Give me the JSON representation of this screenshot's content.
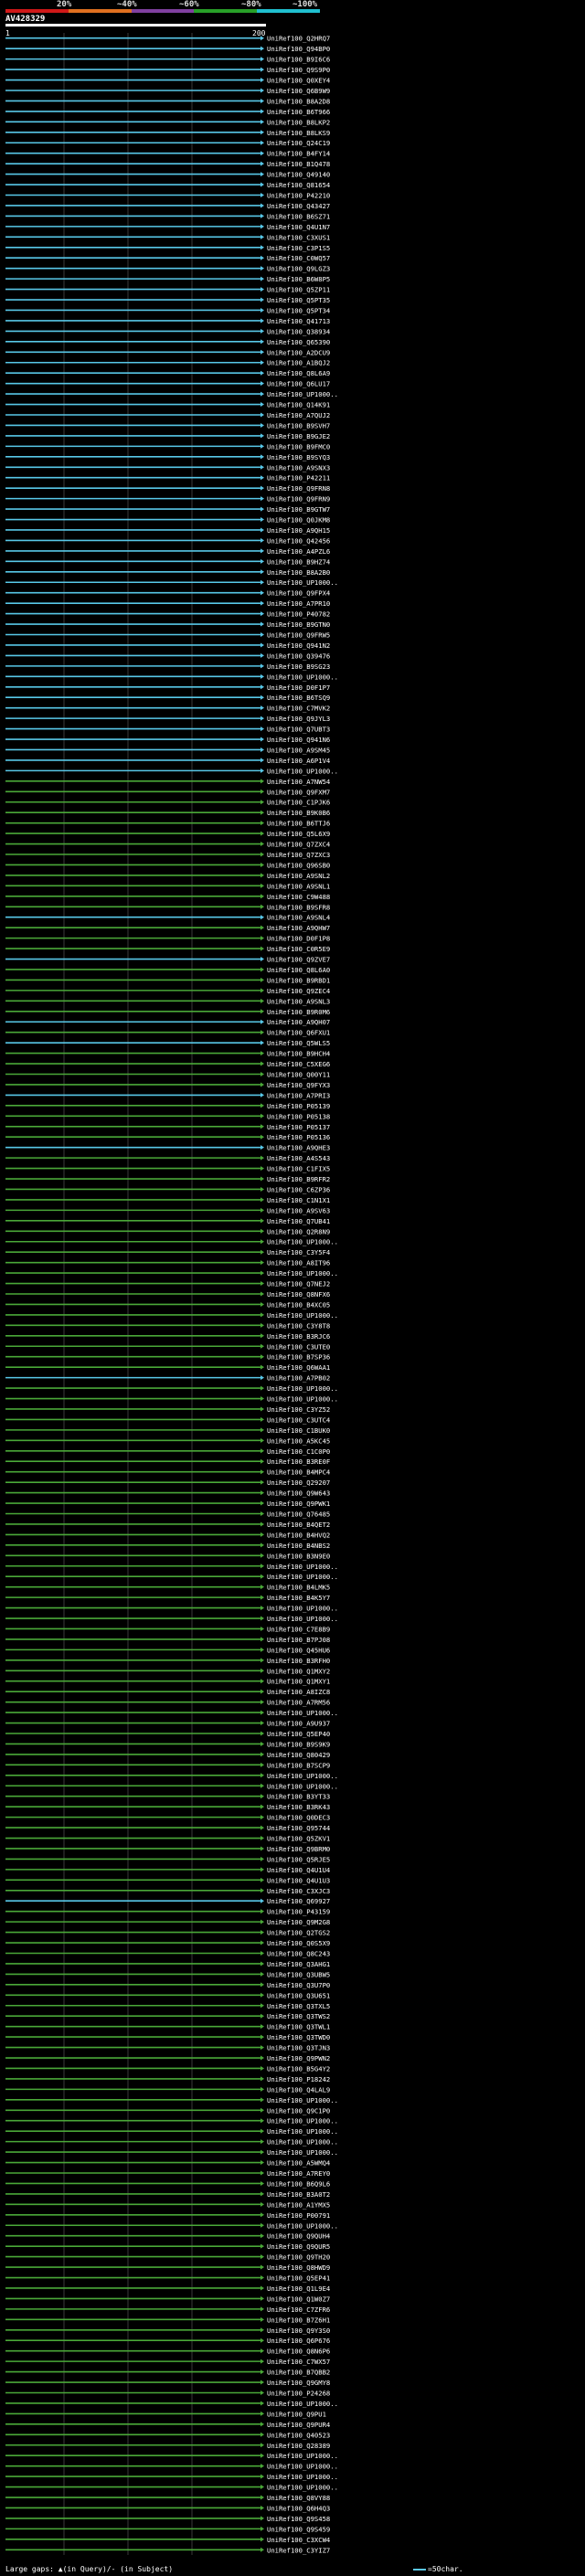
{
  "header": {
    "query_id": "AV428329",
    "scale_labels": [
      "20%",
      "~40%",
      "~60%",
      "~80%",
      "~100%"
    ],
    "scale_colors": [
      "#d01818",
      "#e07020",
      "#8040a0",
      "#28a028",
      "#20c0d0"
    ],
    "query_start_label": "1",
    "query_end_label": "200"
  },
  "colors": {
    "cyan": "#58c8e8",
    "green": "#4aa838",
    "gap": "#111111",
    "guide": "#3a3a3a"
  },
  "legend": {
    "left": "Large gaps: ▲(in Query)/- (in Subject)",
    "right": "=50char."
  },
  "hits": [
    {
      "id": "UniRef100_Q2HRQ7",
      "color": "cyan"
    },
    {
      "id": "UniRef100_Q94BP0",
      "color": "cyan"
    },
    {
      "id": "UniRef100_B9I6C6",
      "color": "cyan"
    },
    {
      "id": "UniRef100_Q9S9P0",
      "color": "cyan"
    },
    {
      "id": "UniRef100_Q0XEY4",
      "color": "cyan"
    },
    {
      "id": "UniRef100_Q6B9W9",
      "color": "cyan"
    },
    {
      "id": "UniRef100_B8A2D8",
      "color": "cyan"
    },
    {
      "id": "UniRef100_B6T966",
      "color": "cyan"
    },
    {
      "id": "UniRef100_B8LKP2",
      "color": "cyan"
    },
    {
      "id": "UniRef100_B8LKS9",
      "color": "cyan"
    },
    {
      "id": "UniRef100_Q24C19",
      "color": "cyan"
    },
    {
      "id": "UniRef100_B4FY14",
      "color": "cyan"
    },
    {
      "id": "UniRef100_B1Q478",
      "color": "cyan"
    },
    {
      "id": "UniRef100_Q49140",
      "color": "cyan"
    },
    {
      "id": "UniRef100_Q81654",
      "color": "cyan"
    },
    {
      "id": "UniRef100_P42210",
      "color": "cyan"
    },
    {
      "id": "UniRef100_Q43427",
      "color": "cyan"
    },
    {
      "id": "UniRef100_B6SZ71",
      "color": "cyan"
    },
    {
      "id": "UniRef100_Q4U1N7",
      "color": "cyan"
    },
    {
      "id": "UniRef100_C3XUS1",
      "color": "cyan"
    },
    {
      "id": "UniRef100_C3P1S5",
      "color": "cyan"
    },
    {
      "id": "UniRef100_C0WQ57",
      "color": "cyan"
    },
    {
      "id": "UniRef100_Q9LGZ3",
      "color": "cyan"
    },
    {
      "id": "UniRef100_B6W8P5",
      "color": "cyan"
    },
    {
      "id": "UniRef100_Q5ZP11",
      "color": "cyan"
    },
    {
      "id": "UniRef100_Q5PT35",
      "color": "cyan"
    },
    {
      "id": "UniRef100_Q5PT34",
      "color": "cyan"
    },
    {
      "id": "UniRef100_Q41713",
      "color": "cyan"
    },
    {
      "id": "UniRef100_Q38934",
      "color": "cyan"
    },
    {
      "id": "UniRef100_Q65390",
      "color": "cyan"
    },
    {
      "id": "UniRef100_A2DCU9",
      "color": "cyan"
    },
    {
      "id": "UniRef100_A1BQJ2",
      "color": "cyan"
    },
    {
      "id": "UniRef100_Q8L6A9",
      "color": "cyan"
    },
    {
      "id": "UniRef100_Q6LU17",
      "color": "cyan"
    },
    {
      "id": "UniRef100_UP1000..",
      "color": "cyan"
    },
    {
      "id": "UniRef100_Q14K91",
      "color": "cyan"
    },
    {
      "id": "UniRef100_A7QUJ2",
      "color": "cyan"
    },
    {
      "id": "UniRef100_B9SVH7",
      "color": "cyan"
    },
    {
      "id": "UniRef100_B9GJE2",
      "color": "cyan"
    },
    {
      "id": "UniRef100_B9FMC0",
      "color": "cyan"
    },
    {
      "id": "UniRef100_B9SYQ3",
      "color": "cyan"
    },
    {
      "id": "UniRef100_A9SNX3",
      "color": "cyan"
    },
    {
      "id": "UniRef100_P42211",
      "color": "cyan"
    },
    {
      "id": "UniRef100_Q9FRN8",
      "color": "cyan"
    },
    {
      "id": "UniRef100_Q9FRN9",
      "color": "cyan"
    },
    {
      "id": "UniRef100_B9GTW7",
      "color": "cyan"
    },
    {
      "id": "UniRef100_Q0JKM8",
      "color": "cyan"
    },
    {
      "id": "UniRef100_A9QH15",
      "color": "cyan"
    },
    {
      "id": "UniRef100_Q42456",
      "color": "cyan"
    },
    {
      "id": "UniRef100_A4PZL6",
      "color": "cyan"
    },
    {
      "id": "UniRef100_B9HZ74",
      "color": "cyan"
    },
    {
      "id": "UniRef100_B8A2B0",
      "color": "cyan"
    },
    {
      "id": "UniRef100_UP1000..",
      "color": "cyan"
    },
    {
      "id": "UniRef100_Q9FPX4",
      "color": "cyan"
    },
    {
      "id": "UniRef100_A7PR10",
      "color": "cyan"
    },
    {
      "id": "UniRef100_P40782",
      "color": "cyan"
    },
    {
      "id": "UniRef100_B9GTN0",
      "color": "cyan"
    },
    {
      "id": "UniRef100_Q9FRW5",
      "color": "cyan"
    },
    {
      "id": "UniRef100_Q941N2",
      "color": "cyan"
    },
    {
      "id": "UniRef100_Q39476",
      "color": "cyan"
    },
    {
      "id": "UniRef100_B9SG23",
      "color": "cyan"
    },
    {
      "id": "UniRef100_UP1000..",
      "color": "cyan"
    },
    {
      "id": "UniRef100_D0F1P7",
      "color": "cyan"
    },
    {
      "id": "UniRef100_B6TSQ9",
      "color": "cyan"
    },
    {
      "id": "UniRef100_C7MVK2",
      "color": "cyan"
    },
    {
      "id": "UniRef100_Q9JYL3",
      "color": "cyan"
    },
    {
      "id": "UniRef100_Q7UBT3",
      "color": "cyan"
    },
    {
      "id": "UniRef100_Q941N6",
      "color": "cyan"
    },
    {
      "id": "UniRef100_A9SM45",
      "color": "cyan"
    },
    {
      "id": "UniRef100_A6P1V4",
      "color": "cyan"
    },
    {
      "id": "UniRef100_UP1000..",
      "color": "cyan"
    },
    {
      "id": "UniRef100_A7NW54",
      "color": "green"
    },
    {
      "id": "UniRef100_Q9FXM7",
      "color": "green"
    },
    {
      "id": "UniRef100_C1PJK6",
      "color": "green"
    },
    {
      "id": "UniRef100_B9K0B6",
      "color": "green"
    },
    {
      "id": "UniRef100_B6TTJ6",
      "color": "green"
    },
    {
      "id": "UniRef100_Q5L6X9",
      "color": "green"
    },
    {
      "id": "UniRef100_Q7ZXC4",
      "color": "green"
    },
    {
      "id": "UniRef100_Q7ZXC3",
      "color": "green"
    },
    {
      "id": "UniRef100_Q96SB0",
      "color": "green"
    },
    {
      "id": "UniRef100_A9SNL2",
      "color": "green"
    },
    {
      "id": "UniRef100_A9SNL1",
      "color": "green"
    },
    {
      "id": "UniRef100_C9W488",
      "color": "green"
    },
    {
      "id": "UniRef100_B9SFR8",
      "color": "green"
    },
    {
      "id": "UniRef100_A9SNL4",
      "color": "cyan"
    },
    {
      "id": "UniRef100_A9QHW7",
      "color": "green"
    },
    {
      "id": "UniRef100_D0F1P8",
      "color": "green"
    },
    {
      "id": "UniRef100_C0R5E9",
      "color": "green"
    },
    {
      "id": "UniRef100_Q9ZVE7",
      "color": "cyan"
    },
    {
      "id": "UniRef100_Q8L6A0",
      "color": "green"
    },
    {
      "id": "UniRef100_B9RBD1",
      "color": "green"
    },
    {
      "id": "UniRef100_Q9ZEC4",
      "color": "green"
    },
    {
      "id": "UniRef100_A9SNL3",
      "color": "green"
    },
    {
      "id": "UniRef100_B9R0M6",
      "color": "green"
    },
    {
      "id": "UniRef100_A9QH07",
      "color": "cyan"
    },
    {
      "id": "UniRef100_Q6FXU1",
      "color": "green"
    },
    {
      "id": "UniRef100_Q5WLS5",
      "color": "cyan"
    },
    {
      "id": "UniRef100_B9HCH4",
      "color": "green"
    },
    {
      "id": "UniRef100_C5XEG6",
      "color": "green"
    },
    {
      "id": "UniRef100_Q00Y11",
      "color": "green"
    },
    {
      "id": "UniRef100_Q9FYX3",
      "color": "green"
    },
    {
      "id": "UniRef100_A7PRI3",
      "color": "cyan"
    },
    {
      "id": "UniRef100_P05139",
      "color": "green"
    },
    {
      "id": "UniRef100_P05138",
      "color": "green"
    },
    {
      "id": "UniRef100_P05137",
      "color": "green"
    },
    {
      "id": "UniRef100_P05136",
      "color": "green"
    },
    {
      "id": "UniRef100_A9QHE3",
      "color": "cyan"
    },
    {
      "id": "UniRef100_A4S543",
      "color": "green"
    },
    {
      "id": "UniRef100_C1FIX5",
      "color": "green"
    },
    {
      "id": "UniRef100_B9RFR2",
      "color": "green"
    },
    {
      "id": "UniRef100_C6ZP36",
      "color": "green"
    },
    {
      "id": "UniRef100_C1N1X1",
      "color": "green"
    },
    {
      "id": "UniRef100_A9SV63",
      "color": "green"
    },
    {
      "id": "UniRef100_Q7UB41",
      "color": "green"
    },
    {
      "id": "UniRef100_Q2R8N9",
      "color": "green"
    },
    {
      "id": "UniRef100_UP1000..",
      "color": "green"
    },
    {
      "id": "UniRef100_C3Y5F4",
      "color": "green"
    },
    {
      "id": "UniRef100_A8IT96",
      "color": "green"
    },
    {
      "id": "UniRef100_UP1000..",
      "color": "green"
    },
    {
      "id": "UniRef100_Q7NEJ2",
      "color": "green"
    },
    {
      "id": "UniRef100_Q8NFX6",
      "color": "green"
    },
    {
      "id": "UniRef100_B4XC05",
      "color": "green"
    },
    {
      "id": "UniRef100_UP1000..",
      "color": "green"
    },
    {
      "id": "UniRef100_C3Y8T8",
      "color": "green"
    },
    {
      "id": "UniRef100_B3RJC6",
      "color": "green"
    },
    {
      "id": "UniRef100_C3UTE0",
      "color": "green"
    },
    {
      "id": "UniRef100_B7SP36",
      "color": "green"
    },
    {
      "id": "UniRef100_Q6WAA1",
      "color": "green"
    },
    {
      "id": "UniRef100_A7PB02",
      "color": "cyan"
    },
    {
      "id": "UniRef100_UP1000..",
      "color": "green"
    },
    {
      "id": "UniRef100_UP1000..",
      "color": "green"
    },
    {
      "id": "UniRef100_C3YZ52",
      "color": "green"
    },
    {
      "id": "UniRef100_C3UTC4",
      "color": "green"
    },
    {
      "id": "UniRef100_C1BUK0",
      "color": "green"
    },
    {
      "id": "UniRef100_A5KC45",
      "color": "green"
    },
    {
      "id": "UniRef100_C1C0P0",
      "color": "green"
    },
    {
      "id": "UniRef100_B3RE0F",
      "color": "green"
    },
    {
      "id": "UniRef100_B4MPC4",
      "color": "green"
    },
    {
      "id": "UniRef100_Q29207",
      "color": "green"
    },
    {
      "id": "UniRef100_Q9W643",
      "color": "green"
    },
    {
      "id": "UniRef100_Q9PWK1",
      "color": "green"
    },
    {
      "id": "UniRef100_Q76485",
      "color": "green"
    },
    {
      "id": "UniRef100_B4QET2",
      "color": "green"
    },
    {
      "id": "UniRef100_B4HVQ2",
      "color": "green"
    },
    {
      "id": "UniRef100_B4NBS2",
      "color": "green"
    },
    {
      "id": "UniRef100_B3N9E0",
      "color": "green"
    },
    {
      "id": "UniRef100_UP1000..",
      "color": "green"
    },
    {
      "id": "UniRef100_UP1000..",
      "color": "green"
    },
    {
      "id": "UniRef100_B4LMK5",
      "color": "green"
    },
    {
      "id": "UniRef100_B4K5Y7",
      "color": "green"
    },
    {
      "id": "UniRef100_UP1000..",
      "color": "green"
    },
    {
      "id": "UniRef100_UP1000..",
      "color": "green"
    },
    {
      "id": "UniRef100_C7E8B9",
      "color": "green"
    },
    {
      "id": "UniRef100_B7PJ08",
      "color": "green"
    },
    {
      "id": "UniRef100_Q45HU6",
      "color": "green"
    },
    {
      "id": "UniRef100_B3RFH0",
      "color": "green"
    },
    {
      "id": "UniRef100_Q1MXY2",
      "color": "green"
    },
    {
      "id": "UniRef100_Q1MXY1",
      "color": "green"
    },
    {
      "id": "UniRef100_A8IZC8",
      "color": "green"
    },
    {
      "id": "UniRef100_A7RM56",
      "color": "green"
    },
    {
      "id": "UniRef100_UP1000..",
      "color": "green"
    },
    {
      "id": "UniRef100_A9U937",
      "color": "green"
    },
    {
      "id": "UniRef100_Q5EP40",
      "color": "green"
    },
    {
      "id": "UniRef100_B9S9K9",
      "color": "green"
    },
    {
      "id": "UniRef100_Q80429",
      "color": "green"
    },
    {
      "id": "UniRef100_B7SCP9",
      "color": "green"
    },
    {
      "id": "UniRef100_UP1000..",
      "color": "green"
    },
    {
      "id": "UniRef100_UP1000..",
      "color": "green"
    },
    {
      "id": "UniRef100_B3YT33",
      "color": "green"
    },
    {
      "id": "UniRef100_B3RK43",
      "color": "green"
    },
    {
      "id": "UniRef100_Q0DEC3",
      "color": "green"
    },
    {
      "id": "UniRef100_Q95744",
      "color": "green"
    },
    {
      "id": "UniRef100_Q5ZKV1",
      "color": "green"
    },
    {
      "id": "UniRef100_Q9BRM0",
      "color": "green"
    },
    {
      "id": "UniRef100_Q5RJE5",
      "color": "green"
    },
    {
      "id": "UniRef100_Q4U1U4",
      "color": "green"
    },
    {
      "id": "UniRef100_Q4U1U3",
      "color": "green"
    },
    {
      "id": "UniRef100_C3XJC3",
      "color": "green"
    },
    {
      "id": "UniRef100_Q69927",
      "color": "cyan"
    },
    {
      "id": "UniRef100_P43159",
      "color": "green"
    },
    {
      "id": "UniRef100_Q9M2G8",
      "color": "green"
    },
    {
      "id": "UniRef100_Q2TGS2",
      "color": "green"
    },
    {
      "id": "UniRef100_Q0S5X9",
      "color": "green"
    },
    {
      "id": "UniRef100_Q8C243",
      "color": "green"
    },
    {
      "id": "UniRef100_Q3AHG1",
      "color": "green"
    },
    {
      "id": "UniRef100_Q3UBW5",
      "color": "green"
    },
    {
      "id": "UniRef100_Q3U7P0",
      "color": "green"
    },
    {
      "id": "UniRef100_Q3U651",
      "color": "green"
    },
    {
      "id": "UniRef100_Q3TXL5",
      "color": "green"
    },
    {
      "id": "UniRef100_Q3TWS2",
      "color": "green"
    },
    {
      "id": "UniRef100_Q3TWL1",
      "color": "green"
    },
    {
      "id": "UniRef100_Q3TWD0",
      "color": "green"
    },
    {
      "id": "UniRef100_Q3TJN3",
      "color": "green"
    },
    {
      "id": "UniRef100_Q9PWN2",
      "color": "green"
    },
    {
      "id": "UniRef100_B5G4Y2",
      "color": "green"
    },
    {
      "id": "UniRef100_P18242",
      "color": "green"
    },
    {
      "id": "UniRef100_Q4LAL9",
      "color": "green"
    },
    {
      "id": "UniRef100_UP1000..",
      "color": "green"
    },
    {
      "id": "UniRef100_Q9C1P0",
      "color": "green"
    },
    {
      "id": "UniRef100_UP1000..",
      "color": "green"
    },
    {
      "id": "UniRef100_UP1000..",
      "color": "green"
    },
    {
      "id": "UniRef100_UP1000..",
      "color": "green"
    },
    {
      "id": "UniRef100_UP1000..",
      "color": "green"
    },
    {
      "id": "UniRef100_A5WMQ4",
      "color": "green"
    },
    {
      "id": "UniRef100_A7REY0",
      "color": "green"
    },
    {
      "id": "UniRef100_B6Q9L6",
      "color": "green"
    },
    {
      "id": "UniRef100_B3A0T2",
      "color": "green"
    },
    {
      "id": "UniRef100_A1YMX5",
      "color": "green"
    },
    {
      "id": "UniRef100_P00791",
      "color": "green"
    },
    {
      "id": "UniRef100_UP1000..",
      "color": "green"
    },
    {
      "id": "UniRef100_Q9QUH4",
      "color": "green"
    },
    {
      "id": "UniRef100_Q9QUR5",
      "color": "green"
    },
    {
      "id": "UniRef100_Q9TH20",
      "color": "green"
    },
    {
      "id": "UniRef100_Q8HWD9",
      "color": "green"
    },
    {
      "id": "UniRef100_Q5EP41",
      "color": "green"
    },
    {
      "id": "UniRef100_Q1L9E4",
      "color": "green"
    },
    {
      "id": "UniRef100_Q1W0Z7",
      "color": "green"
    },
    {
      "id": "UniRef100_C7ZFR6",
      "color": "green"
    },
    {
      "id": "UniRef100_B7Z6H1",
      "color": "green"
    },
    {
      "id": "UniRef100_Q9Y3S0",
      "color": "green"
    },
    {
      "id": "UniRef100_Q6P676",
      "color": "green"
    },
    {
      "id": "UniRef100_Q8N6P6",
      "color": "green"
    },
    {
      "id": "UniRef100_C7WX57",
      "color": "green"
    },
    {
      "id": "UniRef100_B7QBB2",
      "color": "green"
    },
    {
      "id": "UniRef100_Q9GMY8",
      "color": "green"
    },
    {
      "id": "UniRef100_P24268",
      "color": "green"
    },
    {
      "id": "UniRef100_UP1000..",
      "color": "green"
    },
    {
      "id": "UniRef100_Q9PU1",
      "color": "green"
    },
    {
      "id": "UniRef100_Q9PUR4",
      "color": "green"
    },
    {
      "id": "UniRef100_Q40523",
      "color": "green"
    },
    {
      "id": "UniRef100_Q28389",
      "color": "green"
    },
    {
      "id": "UniRef100_UP1000..",
      "color": "green"
    },
    {
      "id": "UniRef100_UP1000..",
      "color": "green"
    },
    {
      "id": "UniRef100_UP1000..",
      "color": "green"
    },
    {
      "id": "UniRef100_UP1000..",
      "color": "green"
    },
    {
      "id": "UniRef100_Q8VY88",
      "color": "green"
    },
    {
      "id": "UniRef100_Q6H4Q3",
      "color": "green"
    },
    {
      "id": "UniRef100_Q9S458",
      "color": "green"
    },
    {
      "id": "UniRef100_Q9S459",
      "color": "green"
    },
    {
      "id": "UniRef100_C3XCW4",
      "color": "green"
    },
    {
      "id": "UniRef100_C3YIZ7",
      "color": "green"
    }
  ]
}
